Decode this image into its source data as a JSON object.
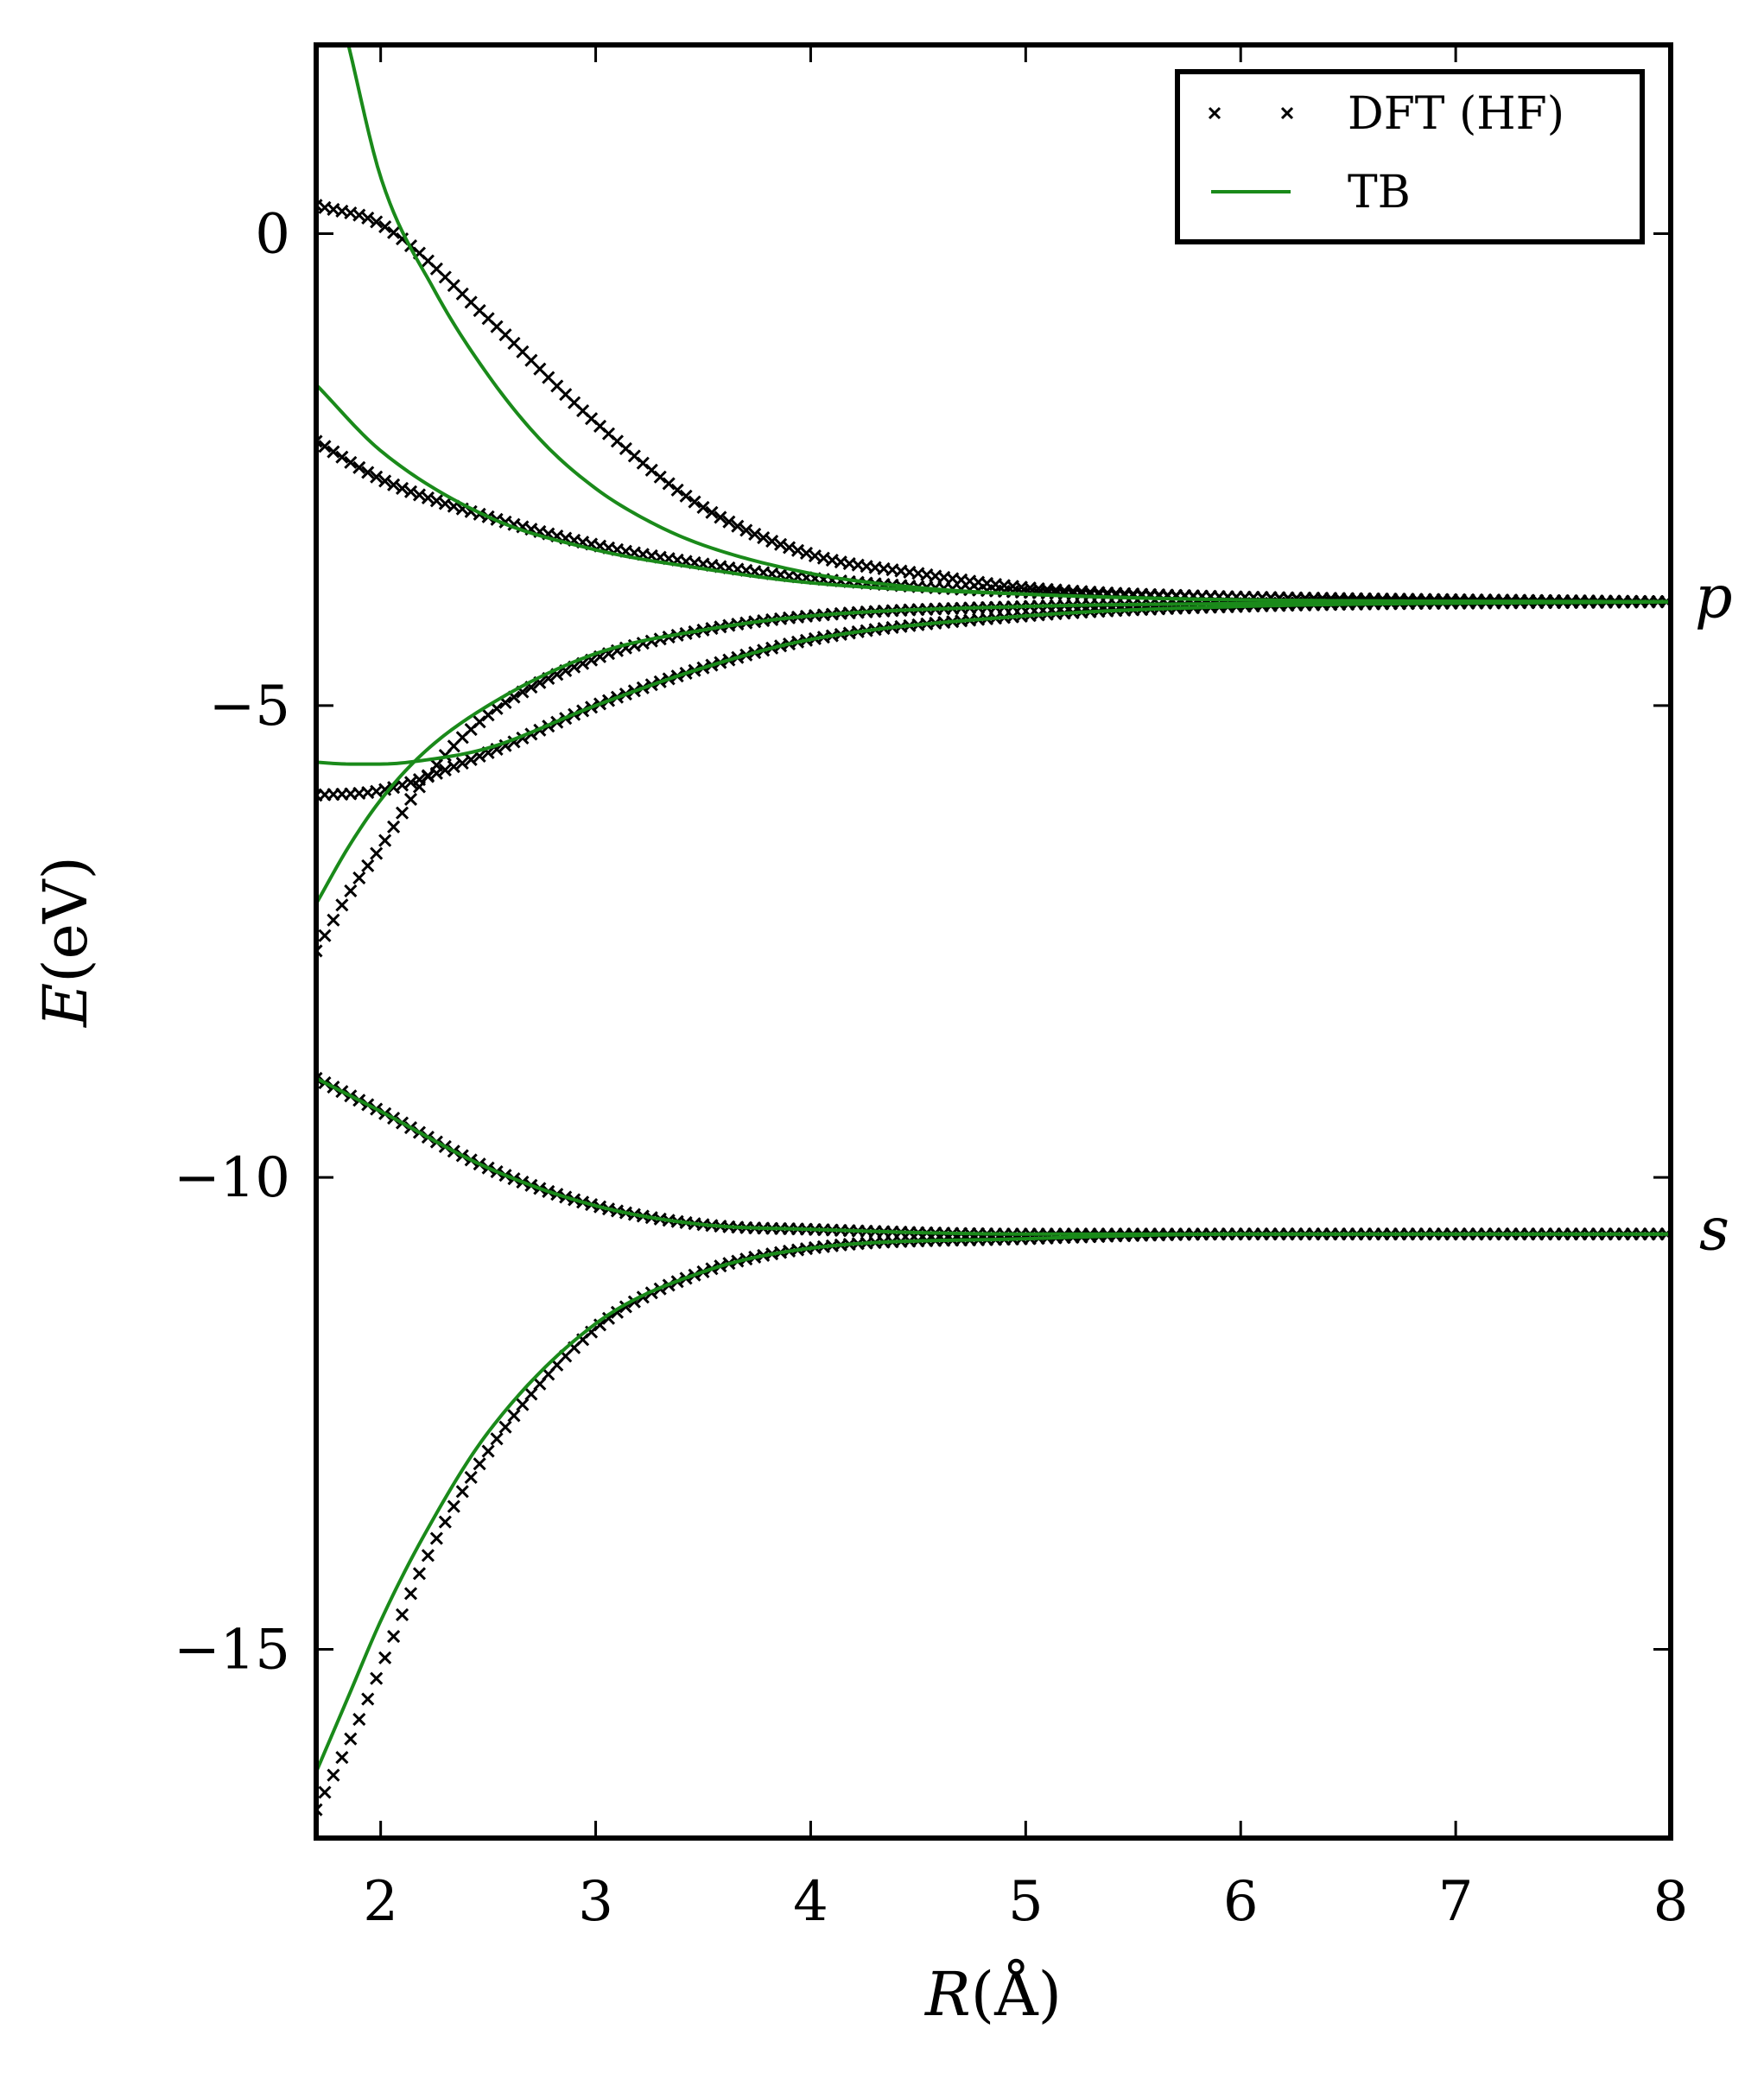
{
  "chart_data": {
    "type": "line",
    "xlabel_prefix": "R",
    "xlabel_unit": "(Å)",
    "ylabel_prefix": "E",
    "ylabel_unit": "(eV)",
    "xlim": [
      1.7,
      8.0
    ],
    "ylim": [
      -17.0,
      2.0
    ],
    "xticks": [
      2,
      3,
      4,
      5,
      6,
      7,
      8
    ],
    "yticks": [
      0,
      -5,
      -10,
      -15
    ],
    "ytick_labels": [
      "0",
      "−5",
      "−10",
      "−15"
    ],
    "grid": false,
    "legend": {
      "placement": "top-right",
      "entries": [
        {
          "label": "DFT (HF)",
          "marker": "x",
          "color": "#000000"
        },
        {
          "label": "TB",
          "marker": "line",
          "color": "#1a8a1a"
        }
      ]
    },
    "annotations": [
      {
        "text": "p",
        "y": -3.9
      },
      {
        "text": "s",
        "y": -10.6
      }
    ],
    "series": [
      {
        "name": "DFT (HF)",
        "kind": "markers",
        "color": "#000000",
        "curves": [
          {
            "x": [
              1.7,
              2.0,
              2.5,
              3.0,
              3.5,
              4.0,
              4.5,
              5.0,
              6.0,
              8.0
            ],
            "y": [
              0.3,
              0.1,
              -0.9,
              -2.0,
              -2.9,
              -3.4,
              -3.6,
              -3.75,
              -3.85,
              -3.9
            ]
          },
          {
            "x": [
              1.7,
              2.0,
              2.5,
              3.0,
              3.5,
              4.0,
              5.0,
              6.0,
              8.0
            ],
            "y": [
              -2.2,
              -2.6,
              -3.0,
              -3.3,
              -3.5,
              -3.65,
              -3.8,
              -3.85,
              -3.9
            ]
          },
          {
            "x": [
              1.7,
              2.0,
              2.5,
              3.0,
              3.5,
              4.0,
              5.0,
              6.0,
              8.0
            ],
            "y": [
              -5.95,
              -5.9,
              -5.5,
              -5.0,
              -4.6,
              -4.3,
              -4.05,
              -3.95,
              -3.9
            ]
          },
          {
            "x": [
              1.7,
              1.85,
              2.0,
              2.2,
              2.5,
              3.0,
              3.5,
              4.0,
              5.0,
              6.0,
              8.0
            ],
            "y": [
              -7.6,
              -7.0,
              -6.5,
              -5.8,
              -5.1,
              -4.5,
              -4.2,
              -4.05,
              -3.95,
              -3.92,
              -3.9
            ]
          },
          {
            "x": [
              1.7,
              2.0,
              2.5,
              3.0,
              3.5,
              4.0,
              5.0,
              6.0,
              8.0
            ],
            "y": [
              -8.95,
              -9.3,
              -9.9,
              -10.3,
              -10.5,
              -10.55,
              -10.6,
              -10.6,
              -10.6
            ]
          },
          {
            "x": [
              1.7,
              1.85,
              2.0,
              2.2,
              2.5,
              3.0,
              3.5,
              4.0,
              5.0,
              6.0,
              8.0
            ],
            "y": [
              -16.7,
              -16.0,
              -15.2,
              -14.1,
              -12.9,
              -11.6,
              -11.0,
              -10.75,
              -10.65,
              -10.6,
              -10.6
            ]
          }
        ]
      },
      {
        "name": "TB",
        "kind": "line",
        "color": "#1a8a1a",
        "curves": [
          {
            "x": [
              1.85,
              2.0,
              2.25,
              2.5,
              2.75,
              3.0,
              3.25,
              3.5,
              4.0,
              4.5,
              5.0,
              6.0,
              8.0
            ],
            "y": [
              2.0,
              0.6,
              -0.6,
              -1.5,
              -2.2,
              -2.7,
              -3.05,
              -3.3,
              -3.6,
              -3.75,
              -3.82,
              -3.88,
              -3.9
            ]
          },
          {
            "x": [
              1.7,
              2.0,
              2.5,
              3.0,
              3.5,
              4.0,
              5.0,
              6.0,
              8.0
            ],
            "y": [
              -1.6,
              -2.3,
              -3.0,
              -3.35,
              -3.55,
              -3.7,
              -3.82,
              -3.88,
              -3.9
            ]
          },
          {
            "x": [
              1.7,
              1.85,
              2.0,
              2.2,
              2.5,
              3.0,
              3.5,
              4.0,
              5.0,
              6.0,
              8.0
            ],
            "y": [
              -5.6,
              -5.62,
              -5.62,
              -5.58,
              -5.45,
              -5.0,
              -4.6,
              -4.3,
              -4.05,
              -3.95,
              -3.9
            ]
          },
          {
            "x": [
              1.7,
              1.85,
              2.0,
              2.2,
              2.5,
              3.0,
              3.5,
              4.0,
              5.0,
              6.0,
              8.0
            ],
            "y": [
              -7.1,
              -6.5,
              -6.0,
              -5.5,
              -5.0,
              -4.45,
              -4.2,
              -4.05,
              -3.95,
              -3.92,
              -3.9
            ]
          },
          {
            "x": [
              1.7,
              2.0,
              2.5,
              3.0,
              3.5,
              4.0,
              5.0,
              6.0,
              8.0
            ],
            "y": [
              -8.95,
              -9.3,
              -9.9,
              -10.3,
              -10.5,
              -10.55,
              -10.6,
              -10.6,
              -10.6
            ]
          },
          {
            "x": [
              1.7,
              1.85,
              2.0,
              2.2,
              2.5,
              3.0,
              3.5,
              4.0,
              5.0,
              6.0,
              8.0
            ],
            "y": [
              -16.3,
              -15.5,
              -14.7,
              -13.8,
              -12.7,
              -11.55,
              -11.0,
              -10.75,
              -10.65,
              -10.6,
              -10.6
            ]
          }
        ]
      }
    ]
  }
}
